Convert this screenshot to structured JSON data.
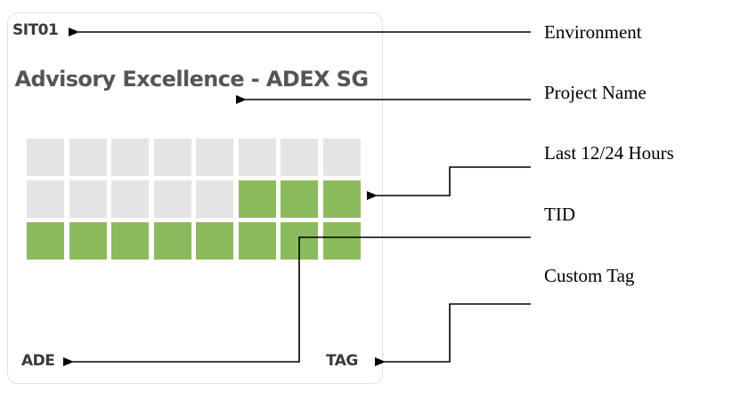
{
  "card": {
    "environment": "SIT01",
    "project_name": "Advisory Excellence - ADEX SG",
    "tid": "ADE",
    "custom_tag": "TAG",
    "grid": {
      "columns": 8,
      "rows": [
        [
          0,
          0,
          0,
          0,
          0,
          0,
          0,
          0
        ],
        [
          0,
          0,
          0,
          0,
          0,
          1,
          1,
          1
        ],
        [
          1,
          1,
          1,
          1,
          1,
          1,
          1,
          1
        ]
      ],
      "colors": {
        "on": "#8cbb5e",
        "off": "#e4e4e4"
      }
    }
  },
  "labels": {
    "environment": "Environment",
    "project_name": "Project Name",
    "hours": "Last 12/24 Hours",
    "tid": "TID",
    "custom_tag": "Custom Tag"
  }
}
